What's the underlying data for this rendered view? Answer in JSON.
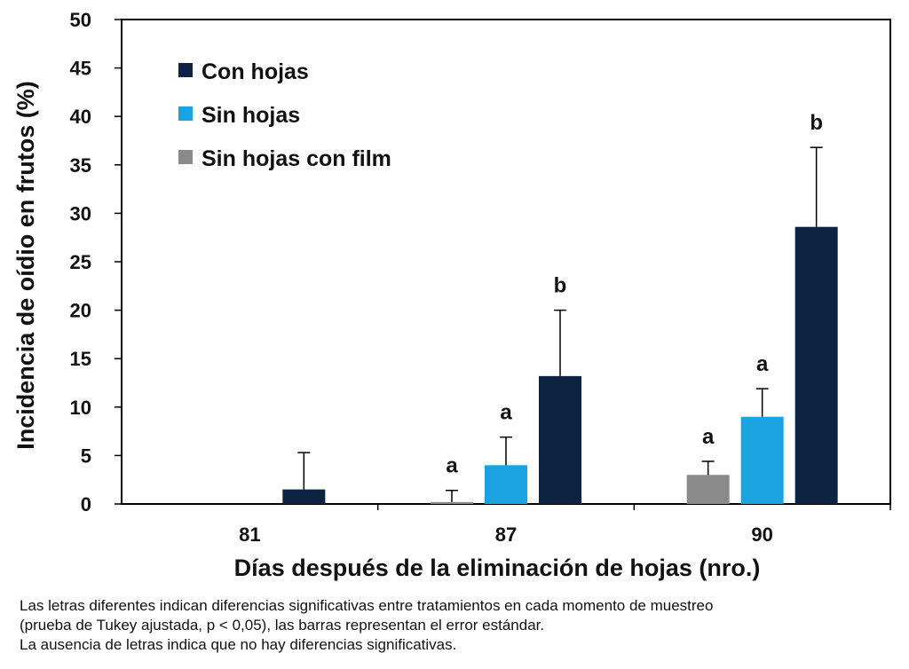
{
  "chart_data": {
    "type": "bar",
    "xlabel": "Días después de la eliminación de hojas (nro.)",
    "ylabel": "Incidencia de oídio en frutos (%)",
    "ylim": [
      0,
      50
    ],
    "yticks": [
      0,
      5,
      10,
      15,
      20,
      25,
      30,
      35,
      40,
      45,
      50
    ],
    "categories": [
      "81",
      "87",
      "90"
    ],
    "grid": false,
    "legend_position": "top-left",
    "series": [
      {
        "name": "Sin hojas con film",
        "color": "#8a8a8a",
        "values": [
          null,
          0.2,
          3.0
        ],
        "errors": [
          null,
          1.2,
          1.4
        ],
        "letters": [
          null,
          "a",
          "a"
        ]
      },
      {
        "name": "Sin hojas",
        "color": "#1aa3e0",
        "values": [
          null,
          4.0,
          9.0
        ],
        "errors": [
          null,
          2.9,
          2.9
        ],
        "letters": [
          null,
          "a",
          "a"
        ]
      },
      {
        "name": "Con hojas",
        "color": "#0d2342",
        "values": [
          1.5,
          13.2,
          28.6
        ],
        "errors": [
          3.8,
          6.8,
          8.2
        ],
        "letters": [
          null,
          "b",
          "b"
        ]
      }
    ],
    "legend_order": [
      2,
      1,
      0
    ]
  },
  "caption": {
    "line1": "Las letras diferentes indican diferencias significativas entre tratamientos en cada momento de muestreo",
    "line2": "(prueba de Tukey ajustada, p < 0,05), las barras representan el error estándar.",
    "line3": "La ausencia de letras indica que no hay diferencias significativas."
  }
}
